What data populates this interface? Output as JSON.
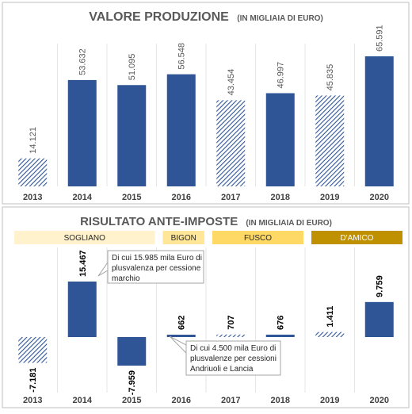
{
  "colors": {
    "bar_solid": "#2f5597",
    "bar_hatch": "#8faadc",
    "sogliano": "#fff2cc",
    "bigon": "#ffe699",
    "fusco": "#ffd966",
    "damico": "#bf9000",
    "panel_border": "#bfbfbf",
    "gridline": "#e6e6e6"
  },
  "chart_data": [
    {
      "type": "bar",
      "title": "VALORE PRODUZIONE",
      "subtitle": "(IN MIGLIAIA DI EURO)",
      "categories": [
        "2013",
        "2014",
        "2015",
        "2016",
        "2017",
        "2018",
        "2019",
        "2020"
      ],
      "values": [
        14121,
        53632,
        51095,
        56548,
        43454,
        46997,
        45835,
        65591
      ],
      "value_labels": [
        "14.121",
        "53.632",
        "51.095",
        "56.548",
        "43.454",
        "46.997",
        "45.835",
        "65.591"
      ],
      "hatched": [
        true,
        false,
        false,
        false,
        true,
        false,
        true,
        false
      ],
      "ylim": [
        0,
        70000
      ],
      "grid": "vertical"
    },
    {
      "type": "bar",
      "title": "RISULTATO ANTE-IMPOSTE",
      "subtitle": "(IN MIGLIAIA DI EURO)",
      "categories": [
        "2013",
        "2014",
        "2015",
        "2016",
        "2017",
        "2018",
        "2019",
        "2020"
      ],
      "values": [
        -7181,
        15467,
        -7959,
        662,
        707,
        676,
        1411,
        9759
      ],
      "value_labels": [
        "-7.181",
        "15.467",
        "-7.959",
        "662",
        "707",
        "676",
        "1.411",
        "9.759"
      ],
      "hatched": [
        true,
        false,
        false,
        false,
        true,
        false,
        true,
        false
      ],
      "ylim": [
        -9500,
        19000
      ],
      "grid": "vertical",
      "segments": [
        {
          "label": "SOGLIANO",
          "from": 0,
          "to": 2
        },
        {
          "label": "BIGON",
          "from": 3,
          "to": 3
        },
        {
          "label": "FUSCO",
          "from": 4,
          "to": 5
        },
        {
          "label": "D'AMICO",
          "from": 6,
          "to": 7
        }
      ],
      "annotations": [
        {
          "index": 1,
          "lines": [
            "Di cui 15.985 mila Euro di",
            "plusvalenza per cessione",
            "marchio"
          ]
        },
        {
          "index": 3,
          "lines": [
            "Di cui 4.500 mila Euro di",
            "plusvalenze per cessioni",
            "Andriuoli e Lancia"
          ]
        }
      ]
    }
  ]
}
